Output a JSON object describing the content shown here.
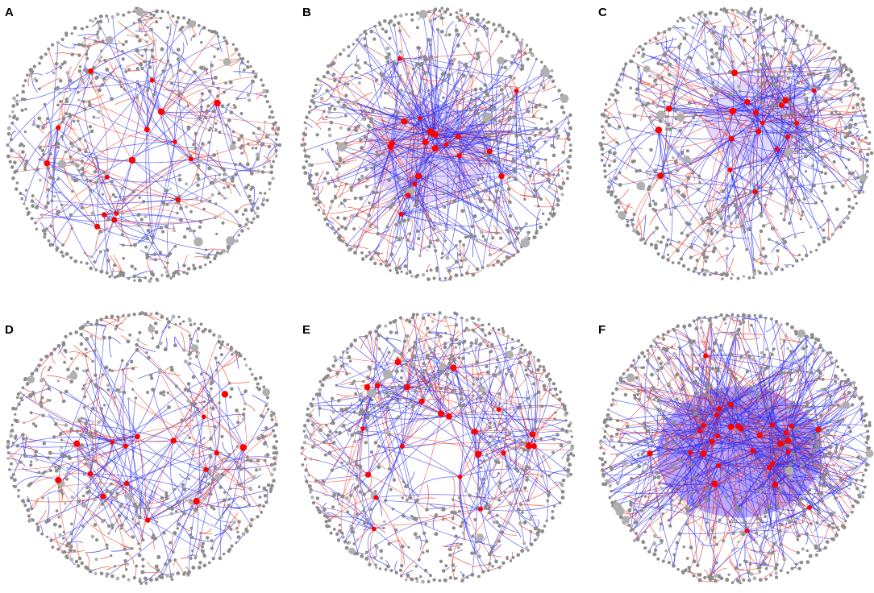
{
  "figure": {
    "panels": [
      {
        "id": "A",
        "label": "A",
        "density": 0.45,
        "hub_count": 16,
        "dense_core": "none"
      },
      {
        "id": "B",
        "label": "B",
        "density": 0.75,
        "hub_count": 20,
        "dense_core": "center-left"
      },
      {
        "id": "C",
        "label": "C",
        "density": 0.75,
        "hub_count": 18,
        "dense_core": "upper-right"
      },
      {
        "id": "D",
        "label": "D",
        "density": 0.5,
        "hub_count": 16,
        "dense_core": "none"
      },
      {
        "id": "E",
        "label": "E",
        "density": 0.6,
        "hub_count": 22,
        "dense_core": "none"
      },
      {
        "id": "F",
        "label": "F",
        "density": 1.0,
        "hub_count": 30,
        "dense_core": "center"
      }
    ],
    "colors": {
      "node": "#8c8c8c",
      "node_light": "#b0b0b0",
      "hub": "#ff0000",
      "positive_edge": "#3333ee",
      "negative_edge": "#ee4433",
      "dense_fill": "#8866ff"
    }
  }
}
